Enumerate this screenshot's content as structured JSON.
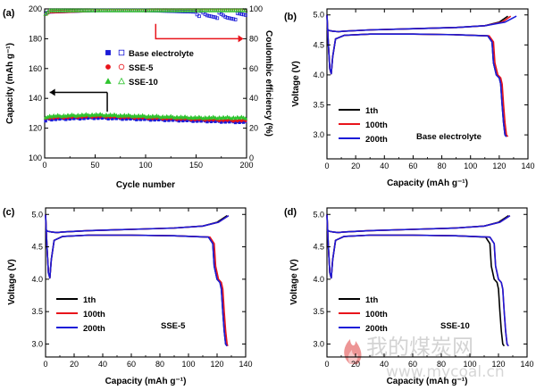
{
  "colors": {
    "black": "#000000",
    "red": "#e8141b",
    "blue": "#1b1bd8",
    "green": "#2ec42e"
  },
  "watermark": {
    "chinese": "我的煤炭网",
    "url": "www.mycoal.cn",
    "icon": "flame-logo-icon"
  },
  "chart_data": [
    {
      "panel": "(a)",
      "type": "scatter",
      "xlabel": "Cycle number",
      "ylabel_left": "Capacity (mAh g⁻¹)",
      "ylabel_right": "Coulombic efficiency (%)",
      "xlim": [
        0,
        200
      ],
      "ylim_left": [
        100,
        200
      ],
      "ylim_right": [
        0,
        100
      ],
      "xticks": [
        "0",
        "50",
        "100",
        "150",
        "200"
      ],
      "yticks_left": [
        "100",
        "120",
        "140",
        "160",
        "180",
        "200"
      ],
      "yticks_right": [
        "0",
        "20",
        "40",
        "60",
        "80",
        "100"
      ],
      "legend": [
        {
          "label": "Base electrolyte",
          "color": "#1b1bd8",
          "filled": "square",
          "open": "square"
        },
        {
          "label": "SSE-5",
          "color": "#e8141b",
          "filled": "circle",
          "open": "circle"
        },
        {
          "label": "SSE-10",
          "color": "#2ec42e",
          "filled": "triangle",
          "open": "triangle"
        }
      ],
      "series": [
        {
          "name": "Base electrolyte",
          "axis": "left",
          "x": [
            0,
            1,
            3,
            5,
            50,
            100,
            150,
            200
          ],
          "y": [
            123,
            125,
            126,
            126,
            127,
            126,
            125,
            124
          ]
        },
        {
          "name": "SSE-5",
          "axis": "left",
          "x": [
            0,
            1,
            3,
            5,
            50,
            100,
            150,
            200
          ],
          "y": [
            124,
            126,
            127,
            127,
            128,
            127,
            126,
            125
          ]
        },
        {
          "name": "SSE-10",
          "axis": "left",
          "x": [
            0,
            1,
            3,
            5,
            50,
            100,
            150,
            200
          ],
          "y": [
            125,
            127,
            128,
            128,
            129,
            128,
            127,
            127
          ]
        },
        {
          "name": "Base electrolyte",
          "axis": "right",
          "x": [
            0,
            5,
            50,
            100,
            150,
            160,
            170,
            180,
            190,
            200
          ],
          "y": [
            97,
            98,
            99,
            99,
            98,
            95,
            96,
            94,
            95,
            96
          ]
        },
        {
          "name": "SSE-5",
          "axis": "right",
          "x": [
            0,
            5,
            50,
            100,
            150,
            200
          ],
          "y": [
            96,
            98,
            99,
            99,
            99,
            99
          ]
        },
        {
          "name": "SSE-10",
          "axis": "right",
          "x": [
            0,
            5,
            50,
            100,
            150,
            200
          ],
          "y": [
            96,
            99,
            99,
            99,
            99,
            99
          ]
        }
      ]
    },
    {
      "panel": "(b)",
      "type": "line",
      "annotation": "Base electrolyte",
      "xlabel": "Capacity (mAh g⁻¹)",
      "ylabel": "Voltage (V)",
      "xlim": [
        0,
        140
      ],
      "ylim": [
        2.6,
        5.1
      ],
      "xticks": [
        "0",
        "20",
        "40",
        "60",
        "80",
        "100",
        "120",
        "140"
      ],
      "yticks": [
        "3.0",
        "3.5",
        "4.0",
        "4.5",
        "5.0"
      ],
      "legend": [
        "1th",
        "100th",
        "200th"
      ],
      "series": [
        {
          "name": "1th",
          "type": "charge",
          "x": [
            0,
            1.5,
            4,
            8,
            12,
            30,
            60,
            90,
            110,
            120,
            126
          ],
          "y": [
            4.76,
            4.74,
            4.73,
            4.72,
            4.73,
            4.75,
            4.77,
            4.79,
            4.82,
            4.88,
            4.98
          ]
        },
        {
          "name": "1th",
          "type": "discharge",
          "x": [
            0,
            1,
            2,
            3,
            4,
            6,
            12,
            30,
            60,
            90,
            112,
            115,
            116,
            118,
            120,
            121,
            122,
            123,
            124,
            125
          ],
          "y": [
            5.0,
            4.5,
            4.1,
            4.02,
            4.3,
            4.6,
            4.66,
            4.68,
            4.68,
            4.67,
            4.65,
            4.55,
            4.2,
            4.0,
            3.95,
            3.85,
            3.5,
            3.2,
            3.0,
            2.97
          ]
        },
        {
          "name": "100th",
          "type": "charge",
          "x": [
            0,
            1.5,
            4,
            8,
            12,
            30,
            60,
            90,
            110,
            122,
            128
          ],
          "y": [
            4.76,
            4.74,
            4.73,
            4.72,
            4.73,
            4.75,
            4.77,
            4.79,
            4.82,
            4.88,
            4.98
          ]
        },
        {
          "name": "100th",
          "type": "discharge",
          "x": [
            0,
            1,
            2,
            3,
            4,
            6,
            12,
            30,
            60,
            90,
            113,
            116,
            117,
            119,
            121,
            122,
            123,
            124,
            125,
            126
          ],
          "y": [
            5.0,
            4.5,
            4.1,
            4.02,
            4.3,
            4.6,
            4.66,
            4.68,
            4.68,
            4.67,
            4.65,
            4.55,
            4.2,
            4.0,
            3.95,
            3.85,
            3.5,
            3.2,
            3.0,
            2.97
          ]
        },
        {
          "name": "200th",
          "type": "charge",
          "x": [
            0,
            1.5,
            4,
            8,
            12,
            30,
            60,
            90,
            110,
            124,
            132
          ],
          "y": [
            4.76,
            4.74,
            4.73,
            4.72,
            4.73,
            4.75,
            4.77,
            4.79,
            4.82,
            4.88,
            4.98
          ]
        },
        {
          "name": "200th",
          "type": "discharge",
          "x": [
            0,
            1,
            2,
            3,
            4,
            6,
            12,
            30,
            60,
            90,
            112,
            115,
            116,
            118,
            120,
            121,
            122,
            123,
            124,
            125
          ],
          "y": [
            5.0,
            4.5,
            4.1,
            4.02,
            4.3,
            4.6,
            4.66,
            4.68,
            4.68,
            4.67,
            4.65,
            4.55,
            4.2,
            4.0,
            3.95,
            3.85,
            3.5,
            3.2,
            3.0,
            2.97
          ]
        }
      ]
    },
    {
      "panel": "(c)",
      "type": "line",
      "annotation": "SSE-5",
      "xlabel": "Capacity (mAh g⁻¹)",
      "ylabel": "Voltage (V)",
      "xlim": [
        0,
        140
      ],
      "ylim": [
        2.8,
        5.1
      ],
      "xticks": [
        "0",
        "20",
        "40",
        "60",
        "80",
        "100",
        "120",
        "140"
      ],
      "yticks": [
        "3.0",
        "3.5",
        "4.0",
        "4.5",
        "5.0"
      ],
      "legend": [
        "1th",
        "100th",
        "200th"
      ],
      "series": [
        {
          "name": "1th",
          "type": "charge",
          "x": [
            0,
            1.5,
            4,
            8,
            12,
            30,
            60,
            90,
            110,
            120,
            127
          ],
          "y": [
            4.76,
            4.74,
            4.73,
            4.72,
            4.73,
            4.75,
            4.77,
            4.79,
            4.82,
            4.88,
            4.98
          ]
        },
        {
          "name": "1th",
          "type": "discharge",
          "x": [
            0,
            1,
            2,
            3,
            4,
            6,
            12,
            30,
            60,
            90,
            114,
            117,
            118,
            120,
            122,
            123,
            124,
            125,
            126,
            127
          ],
          "y": [
            5.0,
            4.5,
            4.1,
            4.02,
            4.3,
            4.6,
            4.66,
            4.68,
            4.68,
            4.67,
            4.65,
            4.55,
            4.2,
            4.0,
            3.95,
            3.85,
            3.5,
            3.2,
            3.0,
            2.97
          ]
        },
        {
          "name": "100th",
          "type": "charge",
          "x": [
            0,
            1.5,
            4,
            8,
            12,
            30,
            60,
            90,
            110,
            121,
            128
          ],
          "y": [
            4.76,
            4.74,
            4.73,
            4.72,
            4.73,
            4.75,
            4.77,
            4.79,
            4.82,
            4.88,
            4.98
          ]
        },
        {
          "name": "100th",
          "type": "discharge",
          "x": [
            0,
            1,
            2,
            3,
            4,
            6,
            12,
            30,
            60,
            90,
            115,
            118,
            119,
            121,
            123,
            124,
            125,
            126,
            127,
            127.5
          ],
          "y": [
            5.0,
            4.5,
            4.1,
            4.02,
            4.3,
            4.6,
            4.66,
            4.68,
            4.68,
            4.67,
            4.65,
            4.55,
            4.2,
            4.0,
            3.95,
            3.85,
            3.5,
            3.2,
            3.0,
            2.97
          ]
        },
        {
          "name": "200th",
          "type": "charge",
          "x": [
            0,
            1.5,
            4,
            8,
            12,
            30,
            60,
            90,
            110,
            121,
            128
          ],
          "y": [
            4.76,
            4.74,
            4.73,
            4.72,
            4.73,
            4.75,
            4.77,
            4.79,
            4.82,
            4.88,
            4.98
          ]
        },
        {
          "name": "200th",
          "type": "discharge",
          "x": [
            0,
            1,
            2,
            3,
            4,
            6,
            12,
            30,
            60,
            90,
            114,
            117,
            118,
            120,
            122,
            123,
            124,
            125,
            126,
            127
          ],
          "y": [
            5.0,
            4.5,
            4.1,
            4.02,
            4.3,
            4.6,
            4.66,
            4.68,
            4.68,
            4.67,
            4.65,
            4.55,
            4.2,
            4.0,
            3.95,
            3.85,
            3.5,
            3.2,
            3.0,
            2.97
          ]
        }
      ]
    },
    {
      "panel": "(d)",
      "type": "line",
      "annotation": "SSE-10",
      "xlabel": "Capacity (mAh g⁻¹)",
      "ylabel": "Voltage (V)",
      "xlim": [
        0,
        140
      ],
      "ylim": [
        2.8,
        5.1
      ],
      "xticks": [
        "0",
        "20",
        "40",
        "60",
        "80",
        "100",
        "120",
        "140"
      ],
      "yticks": [
        "3.0",
        "3.5",
        "4.0",
        "4.5",
        "5.0"
      ],
      "legend": [
        "1th",
        "100th",
        "200th"
      ],
      "series": [
        {
          "name": "1th",
          "type": "charge",
          "x": [
            0,
            1.5,
            4,
            8,
            12,
            30,
            60,
            90,
            110,
            120,
            127
          ],
          "y": [
            4.76,
            4.74,
            4.73,
            4.72,
            4.73,
            4.75,
            4.77,
            4.79,
            4.82,
            4.88,
            4.98
          ]
        },
        {
          "name": "1th",
          "type": "discharge",
          "x": [
            0,
            1,
            2,
            3,
            4,
            6,
            12,
            30,
            60,
            90,
            111,
            114,
            115,
            117,
            119,
            120,
            121,
            122,
            123,
            124
          ],
          "y": [
            5.0,
            4.5,
            4.1,
            4.02,
            4.3,
            4.6,
            4.66,
            4.68,
            4.68,
            4.67,
            4.65,
            4.55,
            4.2,
            4.0,
            3.95,
            3.85,
            3.5,
            3.2,
            3.0,
            2.97
          ]
        },
        {
          "name": "100th",
          "type": "charge",
          "x": [
            0,
            1.5,
            4,
            8,
            12,
            30,
            60,
            90,
            110,
            121,
            128
          ],
          "y": [
            4.76,
            4.74,
            4.73,
            4.72,
            4.73,
            4.75,
            4.77,
            4.79,
            4.82,
            4.88,
            4.98
          ]
        },
        {
          "name": "100th",
          "type": "discharge",
          "x": [
            0,
            1,
            2,
            3,
            4,
            6,
            12,
            30,
            60,
            90,
            114,
            117,
            118,
            120,
            122,
            123,
            124,
            125,
            126,
            127
          ],
          "y": [
            5.0,
            4.5,
            4.1,
            4.02,
            4.3,
            4.6,
            4.66,
            4.68,
            4.68,
            4.67,
            4.65,
            4.55,
            4.2,
            4.0,
            3.95,
            3.85,
            3.5,
            3.2,
            3.0,
            2.97
          ]
        },
        {
          "name": "200th",
          "type": "charge",
          "x": [
            0,
            1.5,
            4,
            8,
            12,
            30,
            60,
            90,
            110,
            121,
            128
          ],
          "y": [
            4.76,
            4.74,
            4.73,
            4.72,
            4.73,
            4.75,
            4.77,
            4.79,
            4.82,
            4.88,
            4.98
          ]
        },
        {
          "name": "200th",
          "type": "discharge",
          "x": [
            0,
            1,
            2,
            3,
            4,
            6,
            12,
            30,
            60,
            90,
            114,
            117,
            118,
            120,
            122,
            123,
            124,
            125,
            126,
            127
          ],
          "y": [
            5.0,
            4.5,
            4.1,
            4.02,
            4.3,
            4.6,
            4.66,
            4.68,
            4.68,
            4.67,
            4.65,
            4.55,
            4.2,
            4.0,
            3.95,
            3.85,
            3.5,
            3.2,
            3.0,
            2.97
          ]
        }
      ]
    }
  ]
}
